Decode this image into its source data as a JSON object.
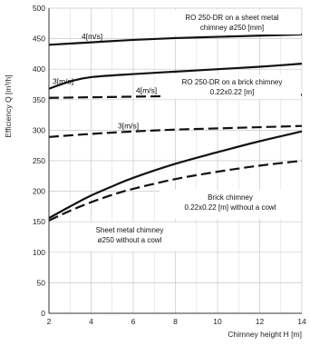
{
  "chart_data": {
    "type": "line",
    "xlabel": "Chimney height H [m]",
    "ylabel": "Efficiency Q [m³/h]",
    "xlim": [
      2,
      14
    ],
    "ylim": [
      0,
      500
    ],
    "xticks": [
      "2",
      "4",
      "6",
      "8",
      "10",
      "12",
      "14"
    ],
    "yticks": [
      "0",
      "50",
      "100",
      "150",
      "200",
      "250",
      "300",
      "350",
      "400",
      "450",
      "500"
    ],
    "grid": true,
    "series": [
      {
        "label": "4[m/s]",
        "style": "solid",
        "x": [
          2,
          4,
          6,
          8,
          10,
          12,
          14
        ],
        "y": [
          440,
          444,
          448,
          451,
          453,
          455,
          457
        ]
      },
      {
        "label": "3[m/s]",
        "style": "solid",
        "x": [
          2,
          3,
          4,
          6,
          8,
          10,
          12,
          14
        ],
        "y": [
          368,
          380,
          387,
          392,
          396,
          400,
          404,
          409
        ]
      },
      {
        "label": "4[m/s]",
        "style": "dashed",
        "x": [
          2,
          4,
          6,
          8,
          10,
          12,
          14
        ],
        "y": [
          353,
          354,
          355,
          356,
          357,
          358,
          358
        ]
      },
      {
        "label": "3[m/s]",
        "style": "dashed",
        "x": [
          2,
          4,
          6,
          8,
          10,
          12,
          14
        ],
        "y": [
          289,
          294,
          298,
          301,
          303,
          305,
          307
        ]
      },
      {
        "style": "solid",
        "x": [
          2,
          3,
          4,
          5,
          6,
          8,
          10,
          12,
          14
        ],
        "y": [
          156,
          175,
          193,
          208,
          222,
          245,
          264,
          282,
          298
        ]
      },
      {
        "style": "dashed",
        "x": [
          2,
          3,
          4,
          5,
          6,
          8,
          10,
          12,
          14
        ],
        "y": [
          152,
          168,
          182,
          194,
          204,
          220,
          232,
          242,
          250
        ]
      }
    ],
    "annotations": [
      {
        "lines": [
          "RO 250-DR on a sheet metal",
          "chimney ø250 [mm]"
        ]
      },
      {
        "lines": [
          "RO 250-DR on a brick chimney",
          "0.22x0.22 [m]"
        ]
      },
      {
        "lines": [
          "Brick chimney",
          "0.22x0.22 [m] without a cowl"
        ]
      },
      {
        "lines": [
          "Sheet metal chimney",
          "ø250 without a cowl"
        ]
      }
    ]
  }
}
